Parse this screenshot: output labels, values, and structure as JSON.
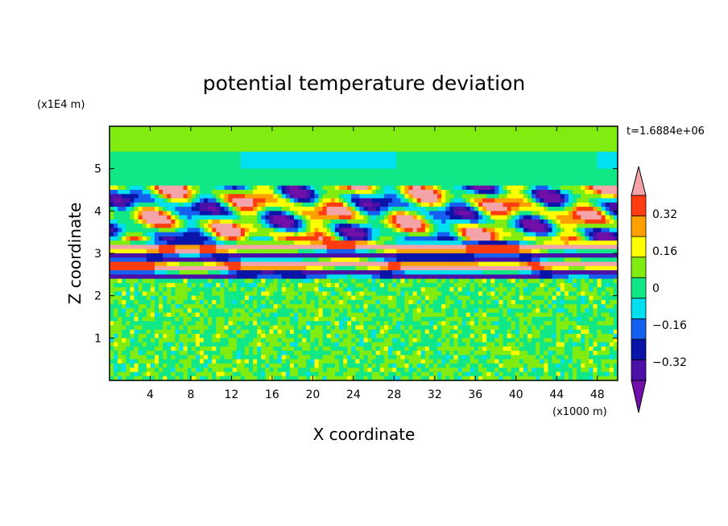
{
  "chart_data": {
    "type": "heatmap",
    "title": "potential temperature deviation",
    "xlabel": "X coordinate",
    "ylabel": "Z coordinate",
    "x_unit": "(x1000 m)",
    "y_unit": "(x1E4 m)",
    "time_label": "t=1.6884e+06",
    "xlim": [
      0,
      50
    ],
    "ylim": [
      0,
      6
    ],
    "x_ticks": [
      4,
      8,
      12,
      16,
      20,
      24,
      28,
      32,
      36,
      40,
      44,
      48
    ],
    "y_ticks": [
      1,
      2,
      3,
      4,
      5
    ],
    "x_tick_labels": [
      "4",
      "8",
      "12",
      "16",
      "20",
      "24",
      "28",
      "32",
      "36",
      "40",
      "44",
      "48"
    ],
    "y_tick_labels": [
      "1",
      "2",
      "3",
      "4",
      "5"
    ],
    "colorbar": {
      "levels": [
        -0.4,
        -0.32,
        -0.24,
        -0.16,
        -0.08,
        0,
        0.08,
        0.16,
        0.24,
        0.32,
        0.4
      ],
      "labeled_ticks": [
        0.32,
        0.16,
        0,
        -0.16,
        -0.32
      ],
      "labeled_tick_text": [
        "0.32",
        "0.16",
        "0",
        "−0.16",
        "−0.32"
      ],
      "colors": [
        "#7010a8",
        "#4a10a8",
        "#0a14a8",
        "#1460f0",
        "#00e0f0",
        "#10e888",
        "#80ec10",
        "#ffff00",
        "#ffa000",
        "#ff3c10",
        "#f4a4a8"
      ],
      "extend": "both"
    },
    "field_regions": [
      {
        "z_range": [
          0,
          2.4
        ],
        "pattern": "fine green noise (values near 0)"
      },
      {
        "z_range": [
          2.4,
          3.3
        ],
        "pattern": "intense alternating red / blue layers"
      },
      {
        "z_range": [
          3.3,
          4.6
        ],
        "pattern": "wavy eddies of yellow, orange, red, blue, purple"
      },
      {
        "z_range": [
          4.6,
          6.0
        ],
        "pattern": "smooth green with a cyan band"
      }
    ]
  }
}
